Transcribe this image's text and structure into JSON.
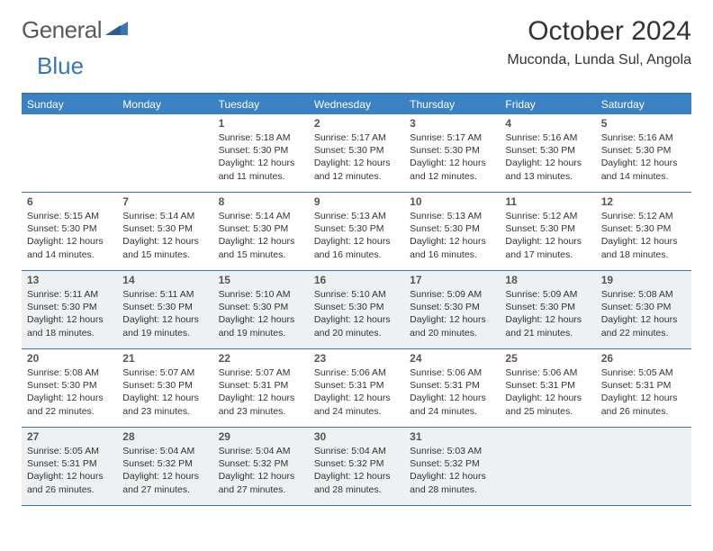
{
  "brand": {
    "part1": "General",
    "part2": "Blue"
  },
  "title": "October 2024",
  "location": "Muconda, Lunda Sul, Angola",
  "colors": {
    "header_bar": "#3b82c4",
    "border": "#3876b8",
    "shaded_row": "#eef0f2",
    "text": "#333333",
    "logo_gray": "#5a5a5a",
    "logo_blue": "#3876b8"
  },
  "fonts": {
    "title_size_pt": 22,
    "location_size_pt": 12,
    "dayheader_size_pt": 9,
    "daynum_size_pt": 9,
    "cell_size_pt": 8
  },
  "day_names": [
    "Sunday",
    "Monday",
    "Tuesday",
    "Wednesday",
    "Thursday",
    "Friday",
    "Saturday"
  ],
  "weeks": [
    {
      "shaded": false,
      "cells": [
        null,
        null,
        {
          "n": "1",
          "sr": "5:18 AM",
          "ss": "5:30 PM",
          "dy": "12 hours and 11 minutes."
        },
        {
          "n": "2",
          "sr": "5:17 AM",
          "ss": "5:30 PM",
          "dy": "12 hours and 12 minutes."
        },
        {
          "n": "3",
          "sr": "5:17 AM",
          "ss": "5:30 PM",
          "dy": "12 hours and 12 minutes."
        },
        {
          "n": "4",
          "sr": "5:16 AM",
          "ss": "5:30 PM",
          "dy": "12 hours and 13 minutes."
        },
        {
          "n": "5",
          "sr": "5:16 AM",
          "ss": "5:30 PM",
          "dy": "12 hours and 14 minutes."
        }
      ]
    },
    {
      "shaded": false,
      "cells": [
        {
          "n": "6",
          "sr": "5:15 AM",
          "ss": "5:30 PM",
          "dy": "12 hours and 14 minutes."
        },
        {
          "n": "7",
          "sr": "5:14 AM",
          "ss": "5:30 PM",
          "dy": "12 hours and 15 minutes."
        },
        {
          "n": "8",
          "sr": "5:14 AM",
          "ss": "5:30 PM",
          "dy": "12 hours and 15 minutes."
        },
        {
          "n": "9",
          "sr": "5:13 AM",
          "ss": "5:30 PM",
          "dy": "12 hours and 16 minutes."
        },
        {
          "n": "10",
          "sr": "5:13 AM",
          "ss": "5:30 PM",
          "dy": "12 hours and 16 minutes."
        },
        {
          "n": "11",
          "sr": "5:12 AM",
          "ss": "5:30 PM",
          "dy": "12 hours and 17 minutes."
        },
        {
          "n": "12",
          "sr": "5:12 AM",
          "ss": "5:30 PM",
          "dy": "12 hours and 18 minutes."
        }
      ]
    },
    {
      "shaded": true,
      "cells": [
        {
          "n": "13",
          "sr": "5:11 AM",
          "ss": "5:30 PM",
          "dy": "12 hours and 18 minutes."
        },
        {
          "n": "14",
          "sr": "5:11 AM",
          "ss": "5:30 PM",
          "dy": "12 hours and 19 minutes."
        },
        {
          "n": "15",
          "sr": "5:10 AM",
          "ss": "5:30 PM",
          "dy": "12 hours and 19 minutes."
        },
        {
          "n": "16",
          "sr": "5:10 AM",
          "ss": "5:30 PM",
          "dy": "12 hours and 20 minutes."
        },
        {
          "n": "17",
          "sr": "5:09 AM",
          "ss": "5:30 PM",
          "dy": "12 hours and 20 minutes."
        },
        {
          "n": "18",
          "sr": "5:09 AM",
          "ss": "5:30 PM",
          "dy": "12 hours and 21 minutes."
        },
        {
          "n": "19",
          "sr": "5:08 AM",
          "ss": "5:30 PM",
          "dy": "12 hours and 22 minutes."
        }
      ]
    },
    {
      "shaded": false,
      "cells": [
        {
          "n": "20",
          "sr": "5:08 AM",
          "ss": "5:30 PM",
          "dy": "12 hours and 22 minutes."
        },
        {
          "n": "21",
          "sr": "5:07 AM",
          "ss": "5:30 PM",
          "dy": "12 hours and 23 minutes."
        },
        {
          "n": "22",
          "sr": "5:07 AM",
          "ss": "5:31 PM",
          "dy": "12 hours and 23 minutes."
        },
        {
          "n": "23",
          "sr": "5:06 AM",
          "ss": "5:31 PM",
          "dy": "12 hours and 24 minutes."
        },
        {
          "n": "24",
          "sr": "5:06 AM",
          "ss": "5:31 PM",
          "dy": "12 hours and 24 minutes."
        },
        {
          "n": "25",
          "sr": "5:06 AM",
          "ss": "5:31 PM",
          "dy": "12 hours and 25 minutes."
        },
        {
          "n": "26",
          "sr": "5:05 AM",
          "ss": "5:31 PM",
          "dy": "12 hours and 26 minutes."
        }
      ]
    },
    {
      "shaded": true,
      "cells": [
        {
          "n": "27",
          "sr": "5:05 AM",
          "ss": "5:31 PM",
          "dy": "12 hours and 26 minutes."
        },
        {
          "n": "28",
          "sr": "5:04 AM",
          "ss": "5:32 PM",
          "dy": "12 hours and 27 minutes."
        },
        {
          "n": "29",
          "sr": "5:04 AM",
          "ss": "5:32 PM",
          "dy": "12 hours and 27 minutes."
        },
        {
          "n": "30",
          "sr": "5:04 AM",
          "ss": "5:32 PM",
          "dy": "12 hours and 28 minutes."
        },
        {
          "n": "31",
          "sr": "5:03 AM",
          "ss": "5:32 PM",
          "dy": "12 hours and 28 minutes."
        },
        null,
        null
      ]
    }
  ],
  "labels": {
    "sunrise": "Sunrise:",
    "sunset": "Sunset:",
    "daylight": "Daylight:"
  }
}
